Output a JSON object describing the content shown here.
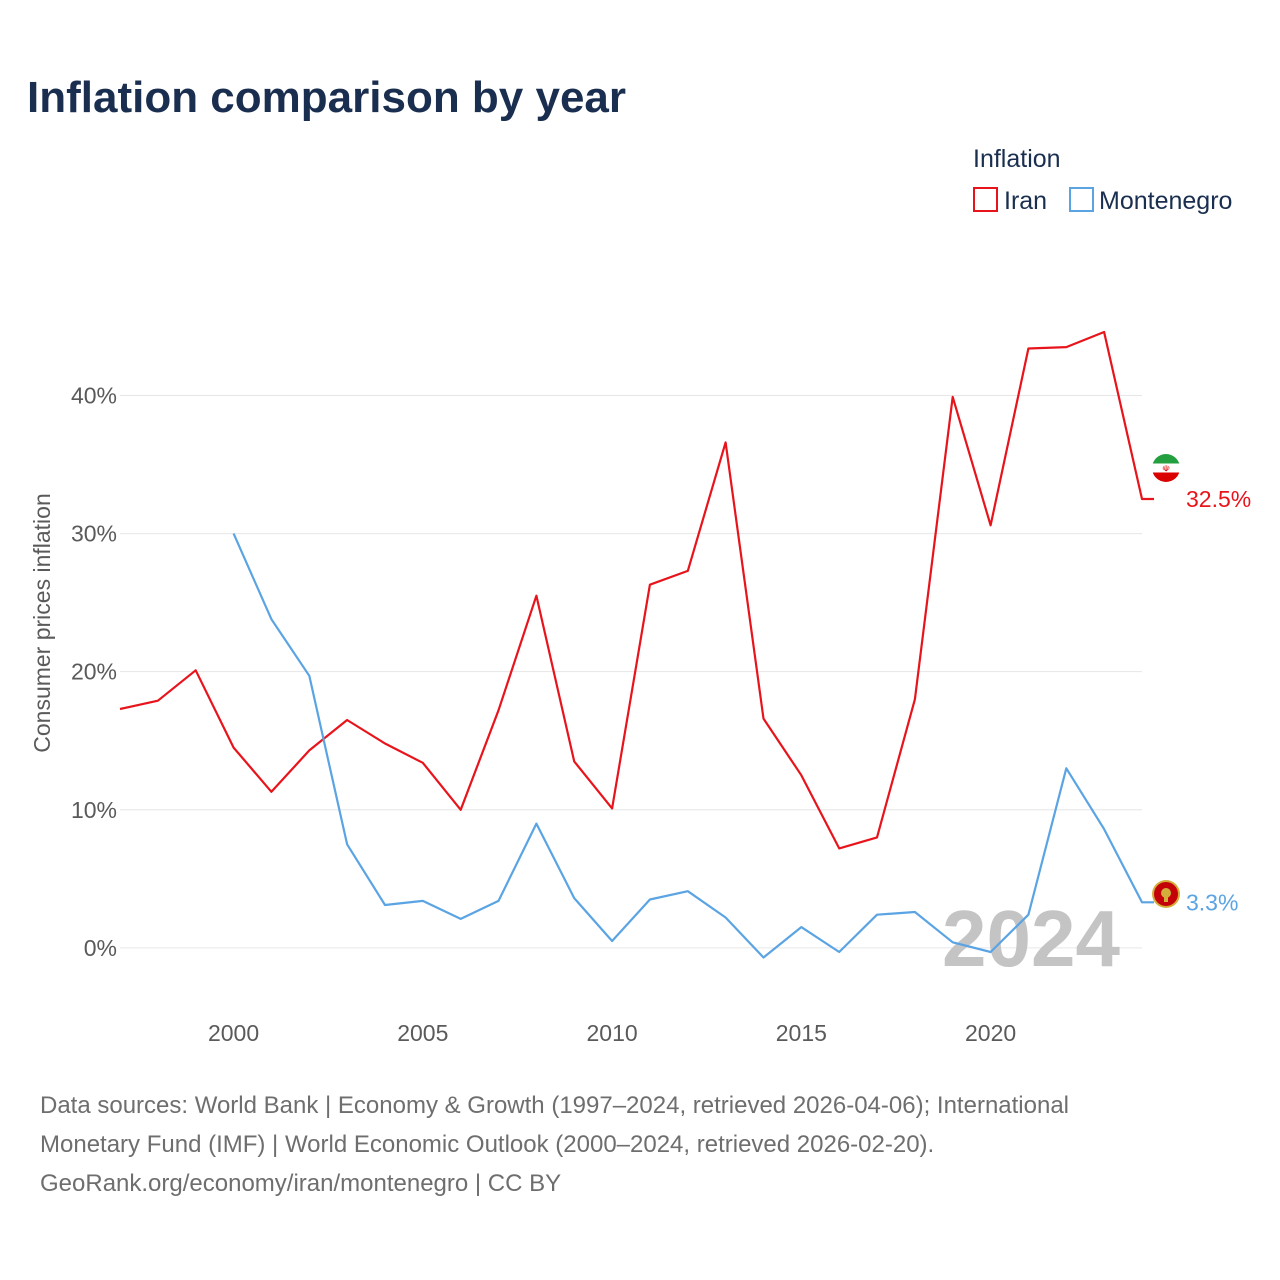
{
  "chart_data": {
    "type": "line",
    "title": "Inflation comparison by year",
    "ylabel": "Consumer prices inflation",
    "xlabel": "",
    "legend_title": "Inflation",
    "legend_position": "top-right",
    "highlight_year": "2024",
    "xlim": [
      1997,
      2024
    ],
    "ylim": [
      -4.5,
      48
    ],
    "x_ticks": [
      2000,
      2005,
      2010,
      2015,
      2020
    ],
    "x_tick_labels": [
      "2000",
      "2005",
      "2010",
      "2015",
      "2020"
    ],
    "y_ticks": [
      0,
      10,
      20,
      30,
      40
    ],
    "y_tick_labels": [
      "0%",
      "10%",
      "20%",
      "30%",
      "40%"
    ],
    "series": [
      {
        "name": "Iran",
        "color": "#e8141c",
        "end_label": "32.5%",
        "flag_icon": "iran-flag-icon",
        "x": [
          1997,
          1998,
          1999,
          2000,
          2001,
          2002,
          2003,
          2004,
          2005,
          2006,
          2007,
          2008,
          2009,
          2010,
          2011,
          2012,
          2013,
          2014,
          2015,
          2016,
          2017,
          2018,
          2019,
          2020,
          2021,
          2022,
          2023,
          2024
        ],
        "values": [
          17.3,
          17.9,
          20.1,
          14.5,
          11.3,
          14.3,
          16.5,
          14.8,
          13.4,
          10.0,
          17.2,
          25.5,
          13.5,
          10.1,
          26.3,
          27.3,
          36.6,
          16.6,
          12.5,
          7.2,
          8.0,
          18.0,
          39.9,
          30.6,
          43.4,
          43.5,
          44.6,
          32.5
        ]
      },
      {
        "name": "Montenegro",
        "color": "#5ba4e3",
        "end_label": "3.3%",
        "flag_icon": "montenegro-flag-icon",
        "x": [
          2000,
          2001,
          2002,
          2003,
          2004,
          2005,
          2006,
          2007,
          2008,
          2009,
          2010,
          2011,
          2012,
          2013,
          2014,
          2015,
          2016,
          2017,
          2018,
          2019,
          2020,
          2021,
          2022,
          2023,
          2024
        ],
        "values": [
          30.0,
          23.8,
          19.7,
          7.5,
          3.1,
          3.4,
          2.1,
          3.4,
          9.0,
          3.6,
          0.5,
          3.5,
          4.1,
          2.2,
          -0.7,
          1.5,
          -0.3,
          2.4,
          2.6,
          0.4,
          -0.3,
          2.4,
          13.0,
          8.6,
          3.3
        ]
      }
    ]
  },
  "footer": {
    "source_line1": "Data sources: World Bank | Economy & Growth (1997–2024, retrieved 2026-04-06); International",
    "source_line2": "Monetary Fund (IMF) | World Economic Outlook (2000–2024, retrieved 2026-02-20).",
    "source_line3": "GeoRank.org/economy/iran/montenegro | CC BY"
  }
}
